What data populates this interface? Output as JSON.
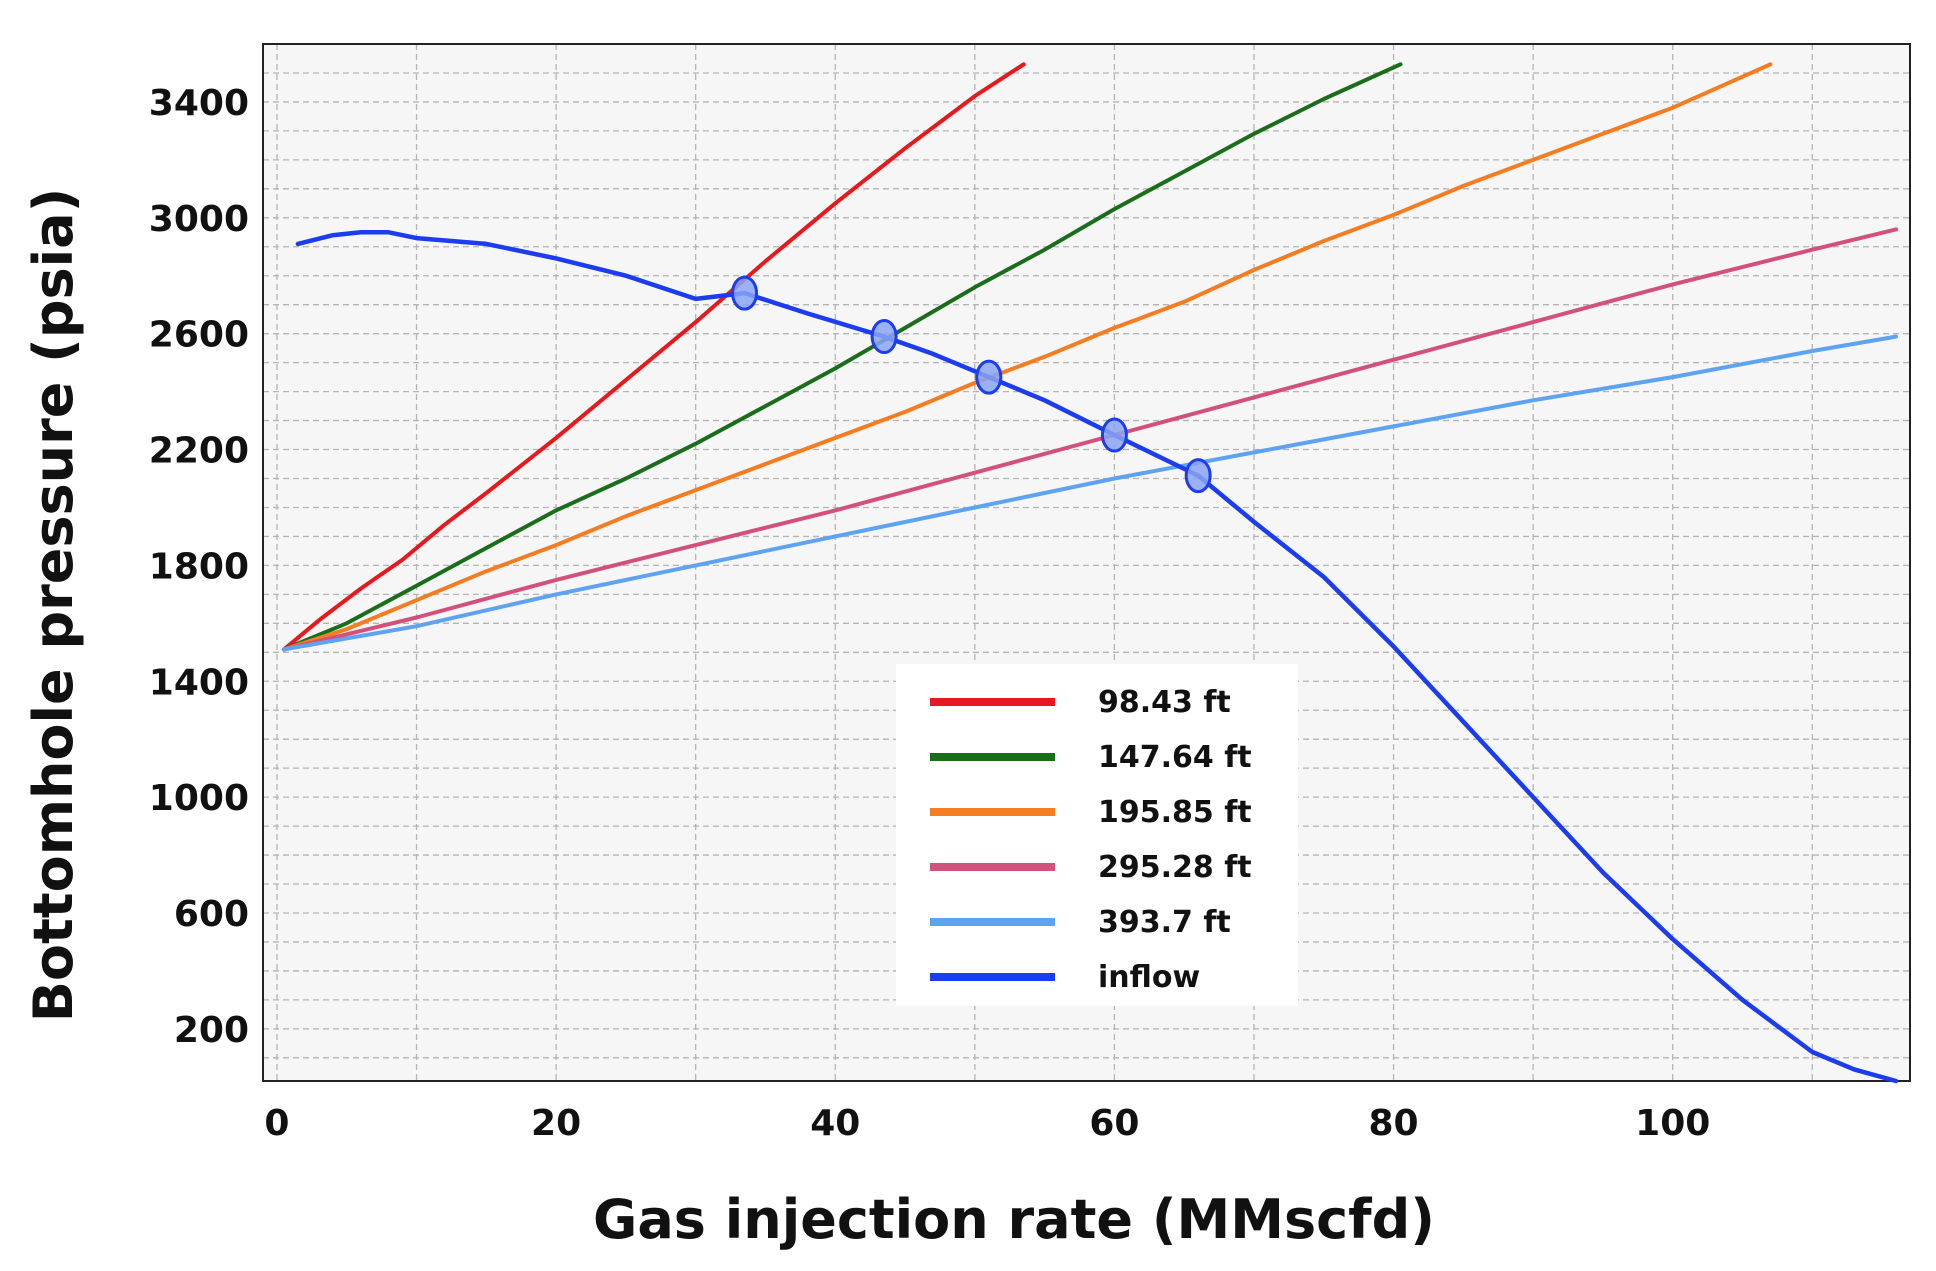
{
  "chart_data": {
    "type": "line",
    "title": "",
    "xlabel": "Gas injection rate (MMscfd)",
    "ylabel": "Bottomhole pressure (psia)",
    "xlim": [
      -1,
      117
    ],
    "ylim": [
      20,
      3600
    ],
    "x_ticks": [
      0,
      20,
      40,
      60,
      80,
      100
    ],
    "y_ticks": [
      200,
      600,
      1000,
      1400,
      1800,
      2200,
      2600,
      3000,
      3400
    ],
    "x_grid": [
      0,
      10,
      20,
      30,
      40,
      50,
      60,
      70,
      80,
      90,
      100,
      110
    ],
    "y_grid_step": 100,
    "grid": true,
    "legend_position": "center-bottom",
    "series": [
      {
        "name": "98.43 ft",
        "color": "#e8181c",
        "x": [
          0.5,
          3,
          6,
          9,
          12,
          15,
          20,
          25,
          30,
          35,
          40,
          45,
          50,
          53.5
        ],
        "y": [
          1510,
          1610,
          1720,
          1820,
          1940,
          2050,
          2240,
          2440,
          2640,
          2850,
          3050,
          3240,
          3420,
          3530
        ]
      },
      {
        "name": "147.64 ft",
        "color": "#1a6e1a",
        "x": [
          0.5,
          5,
          10,
          15,
          20,
          25,
          30,
          35,
          40,
          45,
          50,
          55,
          60,
          65,
          70,
          75,
          80.5
        ],
        "y": [
          1510,
          1600,
          1730,
          1860,
          1990,
          2100,
          2220,
          2350,
          2480,
          2620,
          2760,
          2890,
          3030,
          3160,
          3290,
          3410,
          3530
        ]
      },
      {
        "name": "195.85 ft",
        "color": "#f57c20",
        "x": [
          0.5,
          5,
          10,
          15,
          20,
          25,
          30,
          35,
          40,
          45,
          50,
          55,
          60,
          65,
          70,
          75,
          80,
          85,
          90,
          95,
          100,
          107
        ],
        "y": [
          1510,
          1580,
          1680,
          1780,
          1870,
          1970,
          2060,
          2150,
          2240,
          2330,
          2430,
          2520,
          2620,
          2710,
          2820,
          2920,
          3010,
          3110,
          3200,
          3290,
          3380,
          3530
        ]
      },
      {
        "name": "295.28 ft",
        "color": "#d4507c",
        "x": [
          0.5,
          10,
          20,
          30,
          40,
          50,
          60,
          70,
          80,
          90,
          100,
          110,
          116
        ],
        "y": [
          1510,
          1620,
          1750,
          1870,
          1990,
          2120,
          2250,
          2380,
          2510,
          2640,
          2770,
          2890,
          2960
        ]
      },
      {
        "name": "393.7 ft",
        "color": "#5ea2f2",
        "x": [
          0.5,
          10,
          20,
          30,
          40,
          50,
          60,
          70,
          80,
          90,
          100,
          110,
          116
        ],
        "y": [
          1510,
          1590,
          1700,
          1800,
          1900,
          2000,
          2100,
          2190,
          2280,
          2370,
          2450,
          2540,
          2590
        ]
      },
      {
        "name": "inflow",
        "color": "#1c3cf0",
        "x": [
          1.5,
          4,
          6,
          8,
          10,
          15,
          20,
          25,
          30,
          33.5,
          38,
          43.5,
          47,
          51,
          55,
          60,
          66,
          70,
          75,
          80,
          85,
          90,
          95,
          100,
          105,
          110,
          113,
          116
        ],
        "y": [
          2910,
          2940,
          2950,
          2950,
          2930,
          2910,
          2860,
          2800,
          2720,
          2740,
          2670,
          2590,
          2530,
          2450,
          2370,
          2250,
          2110,
          1950,
          1760,
          1520,
          1260,
          1000,
          740,
          510,
          300,
          120,
          60,
          20
        ]
      }
    ],
    "intersection_markers": [
      {
        "x": 33.5,
        "y": 2740
      },
      {
        "x": 43.5,
        "y": 2590
      },
      {
        "x": 51,
        "y": 2450
      },
      {
        "x": 60,
        "y": 2250
      },
      {
        "x": 66,
        "y": 2110
      }
    ],
    "marker_color": "#1c3cf0"
  }
}
